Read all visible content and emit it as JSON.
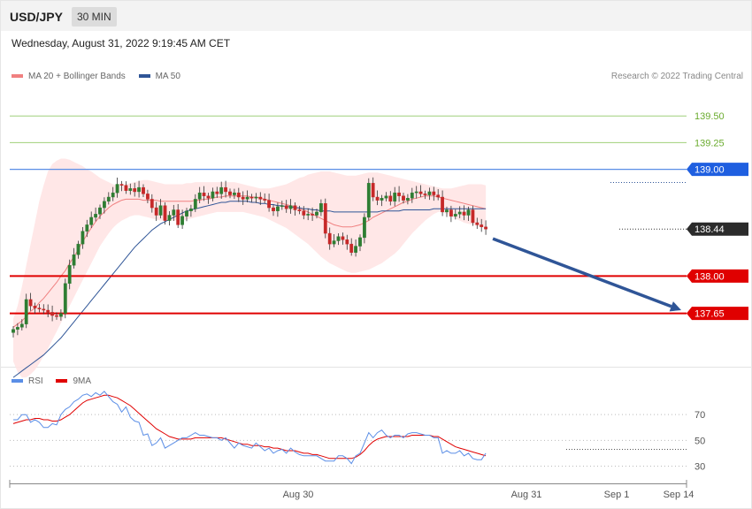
{
  "header": {
    "symbol": "USD/JPY",
    "timeframe": "30 MIN"
  },
  "datetime": "Wednesday, August 31, 2022 9:19:45 AM CET",
  "copyright": "Research © 2022 Trading Central",
  "legend_main": [
    {
      "label": "MA 20 + Bollinger Bands",
      "color": "#f08080"
    },
    {
      "label": "MA 50",
      "color": "#2f5597"
    }
  ],
  "legend_rsi": [
    {
      "label": "RSI",
      "color": "#5b8ee6"
    },
    {
      "label": "9MA",
      "color": "#e00000"
    }
  ],
  "colors": {
    "up": "#2e7d32",
    "down": "#c62828",
    "resistance": "#1f5fe0",
    "support": "#e00000",
    "target": "#6aab2e",
    "arrow": "#2f5597"
  },
  "chart_data": [
    {
      "type": "candlestick",
      "ylim": [
        137.15,
        139.8
      ],
      "levels": [
        {
          "value": 139.5,
          "label": "139.50",
          "kind": "target"
        },
        {
          "value": 139.25,
          "label": "139.25",
          "kind": "target"
        },
        {
          "value": 139.0,
          "label": "139.00",
          "kind": "resistance"
        },
        {
          "value": 138.44,
          "label": "138.44",
          "kind": "last"
        },
        {
          "value": 138.0,
          "label": "138.00",
          "kind": "support"
        },
        {
          "value": 137.65,
          "label": "137.65",
          "kind": "support"
        }
      ],
      "forecast_arrow": {
        "from": 138.35,
        "to": 137.68
      },
      "close": [
        137.5,
        137.52,
        137.55,
        137.78,
        137.72,
        137.7,
        137.69,
        137.68,
        137.66,
        137.63,
        137.62,
        137.65,
        137.93,
        138.1,
        138.2,
        138.3,
        138.42,
        138.48,
        138.55,
        138.58,
        138.64,
        138.7,
        138.74,
        138.78,
        138.86,
        138.85,
        138.8,
        138.82,
        138.79,
        138.83,
        138.77,
        138.72,
        138.64,
        138.57,
        138.66,
        138.52,
        138.57,
        138.62,
        138.48,
        138.56,
        138.61,
        138.63,
        138.72,
        138.78,
        138.75,
        138.73,
        138.79,
        138.77,
        138.83,
        138.79,
        138.76,
        138.78,
        138.74,
        138.72,
        138.74,
        138.73,
        138.74,
        138.72,
        138.71,
        138.64,
        138.61,
        138.65,
        138.66,
        138.63,
        138.66,
        138.62,
        138.61,
        138.57,
        138.58,
        138.57,
        138.6,
        138.68,
        138.4,
        138.3,
        138.33,
        138.37,
        138.34,
        138.3,
        138.22,
        138.28,
        138.36,
        138.55,
        138.87,
        138.74,
        138.71,
        138.73,
        138.75,
        138.7,
        138.78,
        138.75,
        138.71,
        138.73,
        138.78,
        138.79,
        138.77,
        138.76,
        138.79,
        138.76,
        138.74,
        138.6,
        138.62,
        138.56,
        138.58,
        138.6,
        138.57,
        138.62,
        138.5,
        138.48,
        138.46,
        138.44
      ],
      "ma20": [
        137.52,
        137.55,
        137.58,
        137.62,
        137.67,
        137.7,
        137.75,
        137.79,
        137.84,
        137.89,
        137.94,
        138.0,
        138.05,
        138.12,
        138.18,
        138.25,
        138.32,
        138.39,
        138.45,
        138.51,
        138.56,
        138.6,
        138.64,
        138.67,
        138.69,
        138.71,
        138.72,
        138.72,
        138.72,
        138.72,
        138.71,
        138.71,
        138.71,
        138.71,
        138.7,
        138.7,
        138.7,
        138.7,
        138.7,
        138.7,
        138.7,
        138.7,
        138.71,
        138.71,
        138.72,
        138.72,
        138.73,
        138.74,
        138.74,
        138.75,
        138.75,
        138.75,
        138.75,
        138.75,
        138.75,
        138.74,
        138.74,
        138.73,
        138.72,
        138.71,
        138.7,
        138.69,
        138.68,
        138.67,
        138.66,
        138.65,
        138.63,
        138.62,
        138.6,
        138.58,
        138.56,
        138.54,
        138.52,
        138.5,
        138.48,
        138.47,
        138.46,
        138.46,
        138.46,
        138.47,
        138.48,
        138.5,
        138.52,
        138.55,
        138.57,
        138.59,
        138.61,
        138.63,
        138.65,
        138.67,
        138.69,
        138.7,
        138.72,
        138.73,
        138.74,
        138.75,
        138.75,
        138.75,
        138.74,
        138.73,
        138.72,
        138.71,
        138.7,
        138.69,
        138.68,
        138.67,
        138.66,
        138.65,
        138.64,
        138.63
      ],
      "bb_upper": [
        137.6,
        137.72,
        137.9,
        138.1,
        138.3,
        138.5,
        138.7,
        138.85,
        138.98,
        139.05,
        139.08,
        139.1,
        139.1,
        139.09,
        139.07,
        139.05,
        139.03,
        139.0,
        138.98,
        138.95,
        138.92,
        138.9,
        138.88,
        138.86,
        138.85,
        138.85,
        138.86,
        138.87,
        138.88,
        138.89,
        138.9,
        138.9,
        138.89,
        138.88,
        138.87,
        138.86,
        138.86,
        138.86,
        138.86,
        138.86,
        138.87,
        138.87,
        138.88,
        138.88,
        138.88,
        138.88,
        138.88,
        138.88,
        138.88,
        138.88,
        138.88,
        138.88,
        138.87,
        138.86,
        138.85,
        138.84,
        138.83,
        138.82,
        138.82,
        138.82,
        138.83,
        138.84,
        138.85,
        138.86,
        138.88,
        138.9,
        138.92,
        138.93,
        138.95,
        138.96,
        138.97,
        138.98,
        138.98,
        138.98,
        138.97,
        138.96,
        138.95,
        138.94,
        138.94,
        138.94,
        138.95,
        138.96,
        138.97,
        138.97,
        138.97,
        138.96,
        138.95,
        138.94,
        138.93,
        138.92,
        138.91,
        138.9,
        138.89,
        138.88,
        138.87,
        138.86,
        138.85,
        138.84,
        138.83,
        138.82,
        138.82,
        138.82,
        138.83,
        138.84,
        138.85,
        138.86,
        138.86,
        138.86,
        138.86,
        138.85
      ],
      "bb_lower": [
        137.2,
        137.1,
        137.05,
        137.05,
        137.08,
        137.12,
        137.18,
        137.25,
        137.32,
        137.4,
        137.48,
        137.56,
        137.64,
        137.72,
        137.8,
        137.88,
        137.96,
        138.04,
        138.12,
        138.2,
        138.28,
        138.34,
        138.4,
        138.45,
        138.49,
        138.52,
        138.54,
        138.56,
        138.57,
        138.57,
        138.56,
        138.55,
        138.54,
        138.53,
        138.52,
        138.52,
        138.52,
        138.52,
        138.52,
        138.52,
        138.53,
        138.54,
        138.55,
        138.56,
        138.57,
        138.58,
        138.59,
        138.6,
        138.6,
        138.6,
        138.6,
        138.6,
        138.6,
        138.6,
        138.59,
        138.58,
        138.57,
        138.56,
        138.55,
        138.53,
        138.51,
        138.49,
        138.47,
        138.45,
        138.42,
        138.39,
        138.36,
        138.33,
        138.3,
        138.26,
        138.22,
        138.18,
        138.15,
        138.12,
        138.1,
        138.08,
        138.06,
        138.04,
        138.03,
        138.03,
        138.04,
        138.05,
        138.06,
        138.08,
        138.1,
        138.12,
        138.15,
        138.18,
        138.21,
        138.25,
        138.3,
        138.35,
        138.4,
        138.44,
        138.48,
        138.52,
        138.55,
        138.58,
        138.6,
        138.6,
        138.58,
        138.56,
        138.54,
        138.52,
        138.5,
        138.49,
        138.48,
        138.47,
        138.46,
        138.45
      ],
      "ma50": [
        137.05,
        137.08,
        137.11,
        137.14,
        137.17,
        137.2,
        137.23,
        137.26,
        137.3,
        137.34,
        137.38,
        137.42,
        137.47,
        137.52,
        137.57,
        137.62,
        137.67,
        137.72,
        137.77,
        137.82,
        137.87,
        137.92,
        137.97,
        138.02,
        138.07,
        138.12,
        138.17,
        138.22,
        138.27,
        138.31,
        138.35,
        138.39,
        138.43,
        138.46,
        138.49,
        138.51,
        138.53,
        138.55,
        138.57,
        138.59,
        138.61,
        138.62,
        138.63,
        138.64,
        138.65,
        138.66,
        138.67,
        138.68,
        138.69,
        138.69,
        138.7,
        138.7,
        138.7,
        138.7,
        138.7,
        138.69,
        138.69,
        138.68,
        138.68,
        138.67,
        138.67,
        138.66,
        138.66,
        138.65,
        138.65,
        138.64,
        138.64,
        138.63,
        138.63,
        138.62,
        138.62,
        138.61,
        138.61,
        138.61,
        138.6,
        138.6,
        138.6,
        138.6,
        138.6,
        138.6,
        138.6,
        138.6,
        138.6,
        138.6,
        138.6,
        138.61,
        138.61,
        138.61,
        138.61,
        138.61,
        138.62,
        138.62,
        138.62,
        138.62,
        138.62,
        138.62,
        138.62,
        138.63,
        138.63,
        138.63,
        138.63,
        138.63,
        138.63,
        138.63,
        138.63,
        138.63,
        138.63,
        138.63,
        138.63,
        138.63
      ]
    },
    {
      "type": "line",
      "ylim": [
        18,
        90
      ],
      "y_ticks": [
        {
          "value": 70,
          "label": "70"
        },
        {
          "value": 50,
          "label": "50"
        },
        {
          "value": 30,
          "label": "30"
        }
      ],
      "x_ticks": [
        "Aug 30",
        "Aug 31",
        "Sep 1",
        "Sep 14"
      ],
      "series": [
        {
          "name": "RSI",
          "values": [
            66,
            66,
            70,
            70,
            64,
            66,
            64,
            60,
            60,
            63,
            62,
            70,
            74,
            76,
            80,
            82,
            85,
            86,
            84,
            87,
            85,
            88,
            84,
            80,
            78,
            72,
            76,
            68,
            65,
            64,
            54,
            55,
            46,
            48,
            52,
            44,
            46,
            48,
            50,
            52,
            52,
            54,
            56,
            54,
            54,
            53,
            52,
            52,
            50,
            52,
            48,
            44,
            48,
            46,
            45,
            44,
            48,
            45,
            42,
            44,
            40,
            42,
            43,
            40,
            44,
            41,
            39,
            38,
            38,
            38,
            38,
            36,
            34,
            34,
            34,
            38,
            38,
            36,
            32,
            38,
            40,
            48,
            56,
            52,
            56,
            58,
            54,
            52,
            54,
            54,
            52,
            55,
            56,
            56,
            55,
            54,
            54,
            52,
            52,
            40,
            42,
            40,
            40,
            42,
            38,
            40,
            36,
            35,
            35,
            40
          ]
        },
        {
          "name": "9MA",
          "values": [
            63,
            64,
            65,
            66,
            66,
            67,
            67,
            66,
            66,
            65,
            65,
            66,
            68,
            70,
            73,
            76,
            79,
            81,
            82,
            83,
            84,
            85,
            85,
            84,
            83,
            81,
            79,
            77,
            74,
            71,
            68,
            65,
            62,
            59,
            57,
            55,
            53,
            52,
            51,
            51,
            51,
            51,
            52,
            52,
            52,
            52,
            52,
            52,
            52,
            51,
            50,
            49,
            48,
            47,
            47,
            46,
            46,
            46,
            45,
            45,
            44,
            44,
            43,
            42,
            42,
            42,
            41,
            40,
            40,
            39,
            39,
            38,
            37,
            36,
            36,
            36,
            36,
            36,
            36,
            37,
            39,
            42,
            46,
            49,
            51,
            52,
            53,
            53,
            53,
            53,
            53,
            53,
            54,
            54,
            54,
            54,
            54,
            53,
            53,
            51,
            49,
            47,
            45,
            44,
            43,
            42,
            41,
            40,
            39,
            38
          ]
        }
      ]
    }
  ]
}
